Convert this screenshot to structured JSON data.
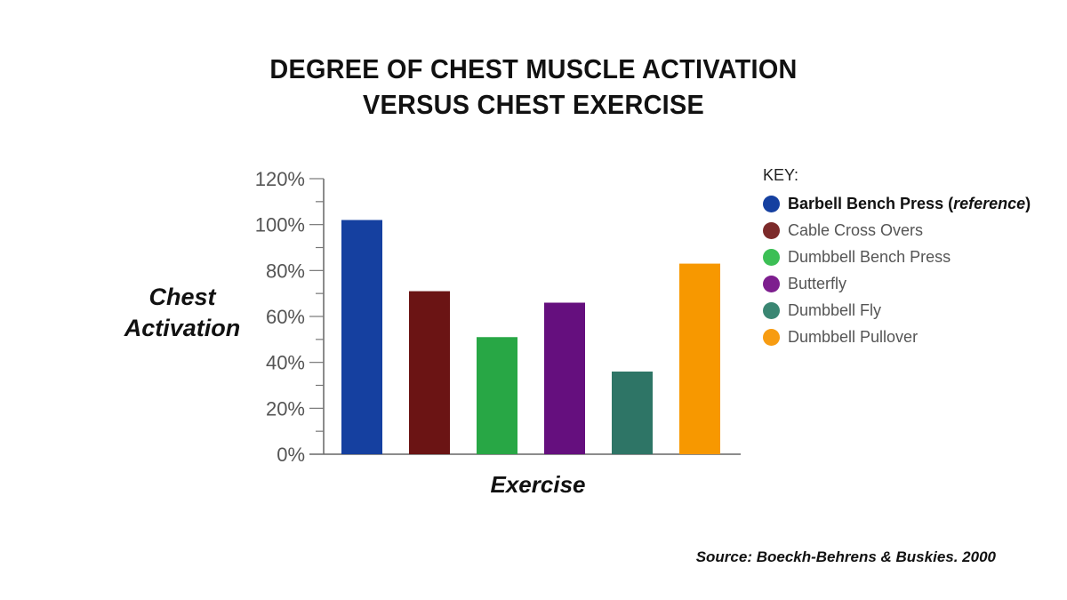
{
  "title": {
    "line1": "DEGREE OF CHEST MUSCLE ACTIVATION",
    "line2": "VERSUS CHEST EXERCISE"
  },
  "source": "Source: Boeckh-Behrens & Buskies. 2000",
  "legend": {
    "title": "KEY:",
    "reference_name": "Barbell Bench Press",
    "reference_note": "reference"
  },
  "chart_data": {
    "type": "bar",
    "title": "DEGREE OF CHEST MUSCLE ACTIVATION VERSUS CHEST EXERCISE",
    "xlabel": "Exercise",
    "ylabel": "Chest Activation",
    "ylim": [
      0,
      120
    ],
    "yticks": [
      "0%",
      "20%",
      "40%",
      "60%",
      "80%",
      "100%",
      "120%"
    ],
    "categories": [
      "Barbell Bench Press (reference)",
      "Cable Cross Overs",
      "Dumbbell Bench Press",
      "Butterfly",
      "Dumbbell Fly",
      "Dumbbell Pullover"
    ],
    "values": [
      102,
      71,
      51,
      66,
      36,
      83
    ],
    "colors": [
      "#1540a0",
      "#6b1414",
      "#28a745",
      "#650f7e",
      "#2e7566",
      "#f79800"
    ],
    "legend_labels": [
      "Barbell Bench Press (reference)",
      "Cable Cross Overs",
      "Dumbbell Bench Press",
      "Butterfly",
      "Dumbbell Fly",
      "Dumbbell Pullover"
    ],
    "legend_colors": [
      "#1540a0",
      "#7c2a2a",
      "#3cbf55",
      "#7d1e8e",
      "#3a8672",
      "#f79c12"
    ],
    "legend_position": "right",
    "grid": false
  }
}
